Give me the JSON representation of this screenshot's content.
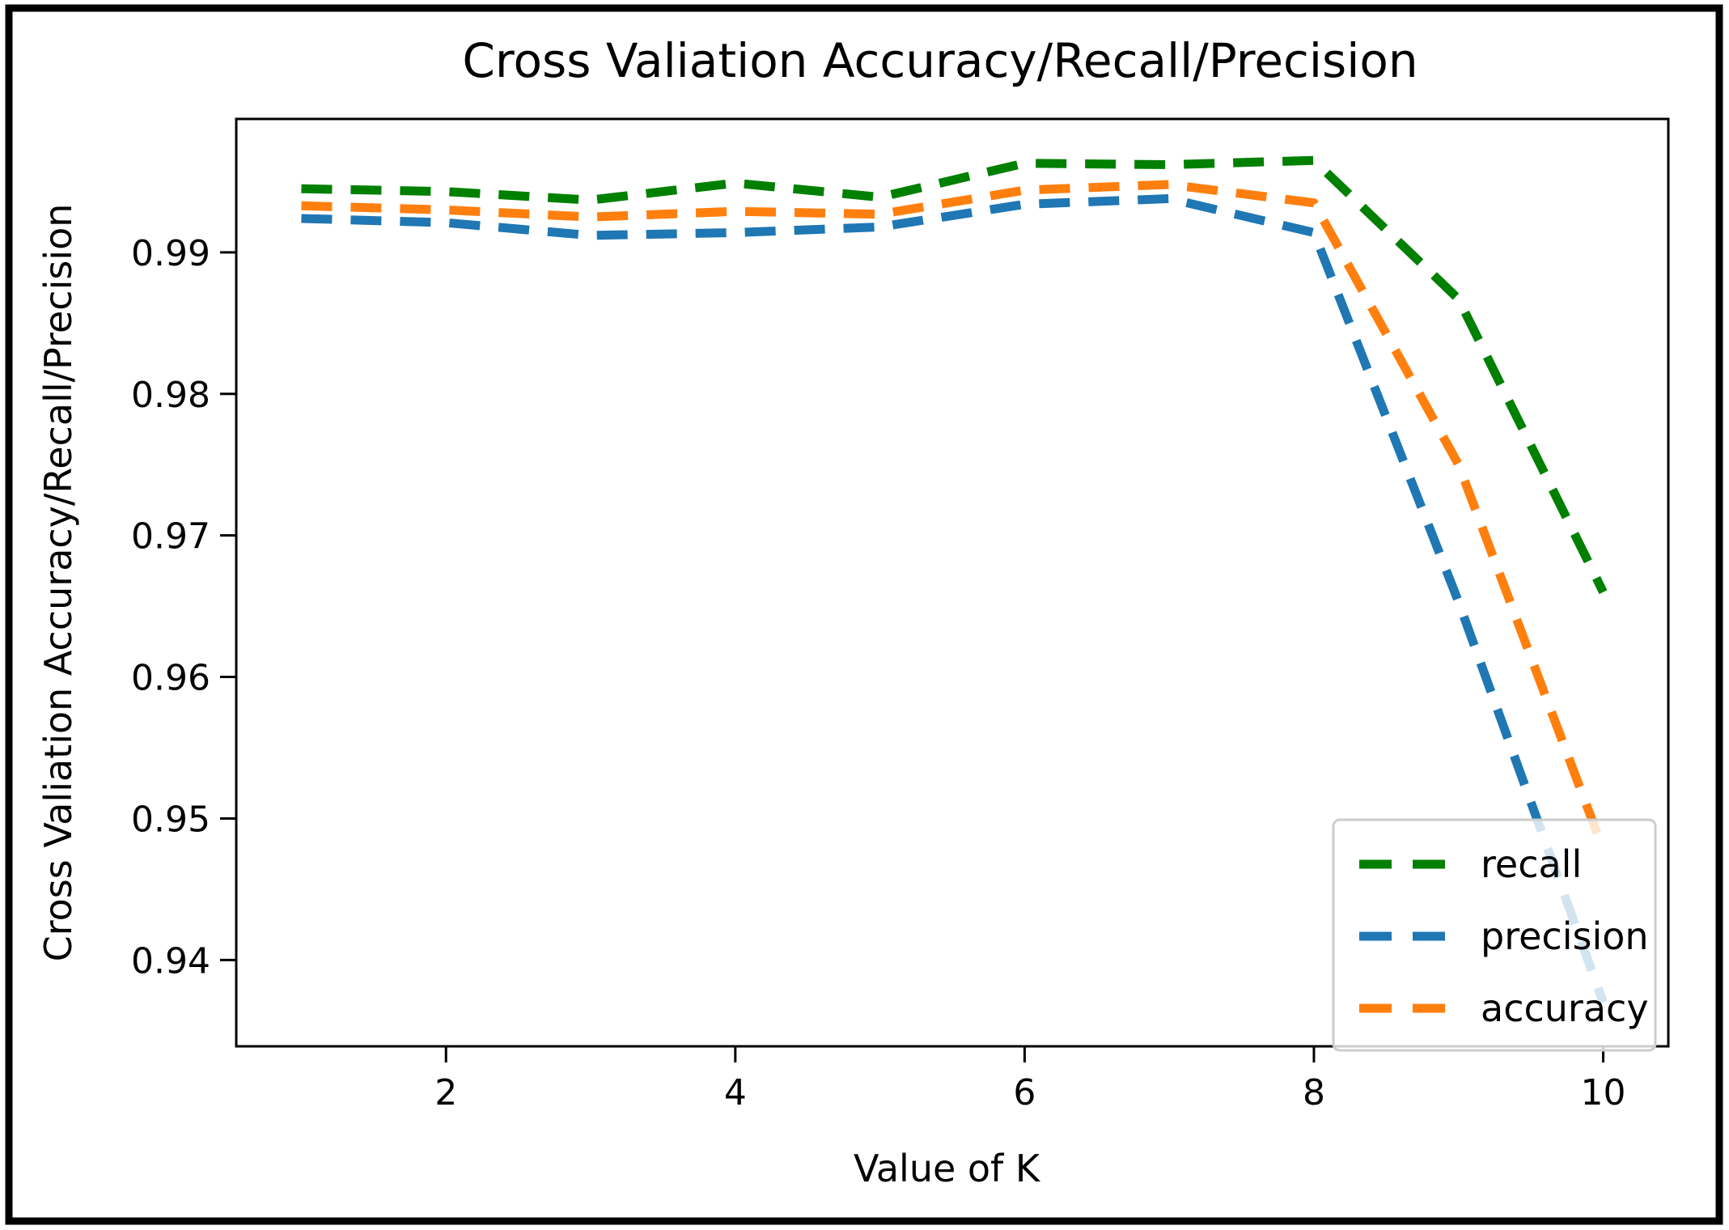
{
  "figure": {
    "background_color": "#ffffff",
    "frame_color": "#000000",
    "axes_line_color": "#000000",
    "tick_label_color": "#000000"
  },
  "chart_data": {
    "type": "line",
    "title": "Cross Valiation Accuracy/Recall/Precision",
    "xlabel": "Value of K",
    "ylabel": "Cross Valiation Accuracy/Recall/Precision",
    "x": [
      1,
      2,
      3,
      4,
      5,
      6,
      7,
      8,
      9,
      10
    ],
    "series": [
      {
        "name": "recall",
        "color": "#008000",
        "linestyle": "dashed",
        "values": [
          0.9945,
          0.9943,
          0.9937,
          0.9949,
          0.9939,
          0.9963,
          0.9962,
          0.9965,
          0.9867,
          0.966
        ]
      },
      {
        "name": "precision",
        "color": "#1f77b4",
        "linestyle": "dashed",
        "values": [
          0.9924,
          0.9921,
          0.9912,
          0.9914,
          0.9918,
          0.9934,
          0.9938,
          0.9914,
          0.9653,
          0.937
        ]
      },
      {
        "name": "accuracy",
        "color": "#ff7f0e",
        "linestyle": "dashed",
        "values": [
          0.9933,
          0.993,
          0.9925,
          0.9929,
          0.9927,
          0.9944,
          0.9948,
          0.9935,
          0.975,
          0.9478
        ]
      }
    ],
    "xticks": [
      2,
      4,
      6,
      8,
      10
    ],
    "yticks": [
      0.99,
      0.98,
      0.97,
      0.96,
      0.95,
      0.94
    ],
    "ytick_labels": [
      "0.99",
      "0.98",
      "0.97",
      "0.96",
      "0.95",
      "0.94"
    ],
    "xlim": [
      0.55,
      10.45
    ],
    "ylim": [
      0.9339,
      0.99943
    ],
    "grid": false,
    "legend": {
      "position": "lower right",
      "border_color": "#cccccc",
      "background": "rgba(255,255,255,0.8)",
      "entries": [
        "recall",
        "precision",
        "accuracy"
      ]
    }
  }
}
